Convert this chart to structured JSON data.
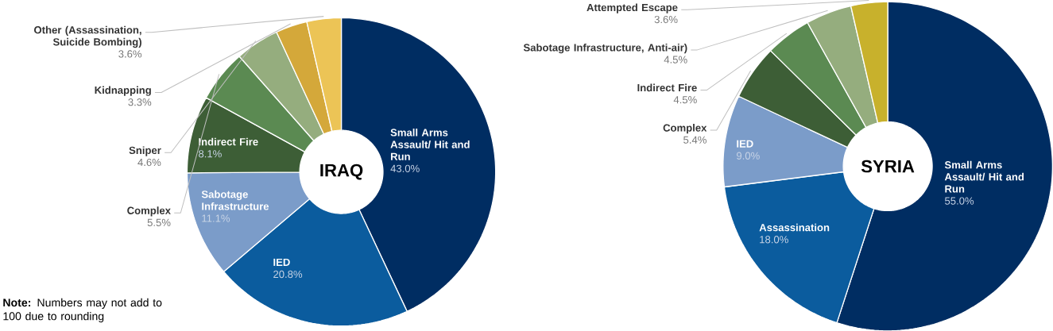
{
  "chart_data": [
    {
      "type": "donut",
      "title": "IRAQ",
      "categories": [
        "Small Arms Assault/ Hit and Run",
        "IED",
        "Sabotage Infrastructure",
        "Indirect Fire",
        "Complex",
        "Sniper",
        "Kidnapping",
        "Other (Assassination, Suicide Bombing)"
      ],
      "values": [
        43.0,
        20.8,
        11.1,
        8.1,
        5.5,
        4.6,
        3.3,
        3.6
      ],
      "value_labels": [
        "43.0%",
        "20.8%",
        "11.1%",
        "8.1%",
        "5.5%",
        "4.6%",
        "3.3%",
        "3.6%"
      ],
      "colors": [
        "#002d62",
        "#0b5c9e",
        "#7b9cc9",
        "#3d5e36",
        "#5b8a52",
        "#95ad7e",
        "#d4a83a",
        "#ecc456"
      ],
      "annotations": [
        "**Note:** Numbers may not add to 100 due to rounding"
      ]
    },
    {
      "type": "donut",
      "title": "SYRIA",
      "categories": [
        "Small Arms Assault/ Hit and Run",
        "Assassination",
        "IED",
        "Complex",
        "Indirect Fire",
        "Sabotage Infrastructure, Anti-air)",
        "Attempted Escape"
      ],
      "values": [
        55.0,
        18.0,
        9.0,
        5.4,
        4.5,
        4.5,
        3.6
      ],
      "value_labels": [
        "55.0%",
        "18.0%",
        "9.0%",
        "5.4%",
        "4.5%",
        "4.5%",
        "3.6%"
      ],
      "colors": [
        "#002d62",
        "#0b5c9e",
        "#7b9cc9",
        "#3d5e36",
        "#5b8a52",
        "#95ad7e",
        "#c8b12c"
      ]
    }
  ]
}
